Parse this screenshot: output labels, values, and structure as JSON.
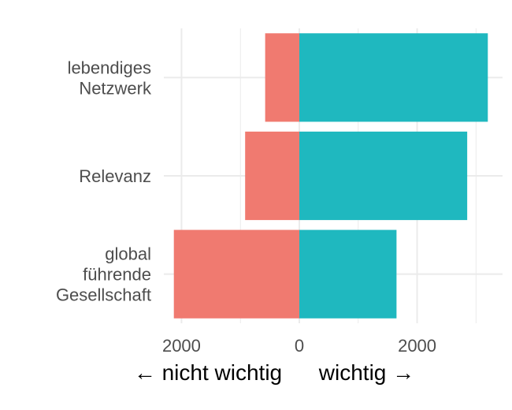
{
  "chart_data": {
    "type": "bar",
    "orientation": "horizontal",
    "stacked": "diverging",
    "categories": [
      [
        "lebendiges",
        "Netzwerk"
      ],
      [
        "Relevanz"
      ],
      [
        "global",
        "führende",
        "Gesellschaft"
      ]
    ],
    "series": [
      {
        "color": "#F07A70",
        "values": [
          -580,
          -920,
          -2130
        ]
      },
      {
        "color": "#1FB8BF",
        "values": [
          3200,
          2850,
          1650
        ]
      }
    ],
    "xlim": [
      -2300,
      3450
    ],
    "xticks": [
      -2000,
      0,
      2000
    ],
    "xtick_labels": [
      "2000",
      "0",
      "2000"
    ],
    "xlabel": "← nicht wichtig      wichtig →",
    "ylabel": "",
    "grid": true,
    "legend": "none"
  }
}
